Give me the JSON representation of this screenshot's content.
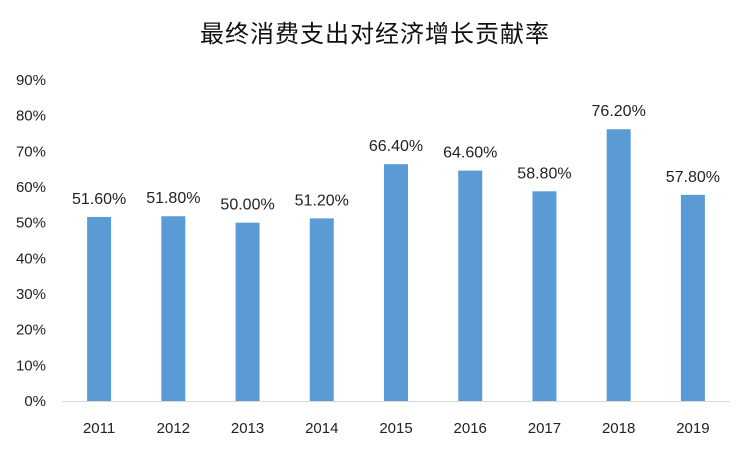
{
  "chart_data": {
    "type": "bar",
    "title": "最终消费支出对经济增长贡献率",
    "categories": [
      "2011",
      "2012",
      "2013",
      "2014",
      "2015",
      "2016",
      "2017",
      "2018",
      "2019"
    ],
    "values": [
      51.6,
      51.8,
      50.0,
      51.2,
      66.4,
      64.6,
      58.8,
      76.2,
      57.8
    ],
    "data_labels": [
      "51.60%",
      "51.80%",
      "50.00%",
      "51.20%",
      "66.40%",
      "64.60%",
      "58.80%",
      "76.20%",
      "57.80%"
    ],
    "y_ticks": [
      "0%",
      "10%",
      "20%",
      "30%",
      "40%",
      "50%",
      "60%",
      "70%",
      "80%",
      "90%"
    ],
    "ylim": [
      0,
      90
    ],
    "xlabel": "",
    "ylabel": "",
    "grid": false,
    "bar_color": "#5B9BD5",
    "axis_color": "#D9D9D9"
  }
}
